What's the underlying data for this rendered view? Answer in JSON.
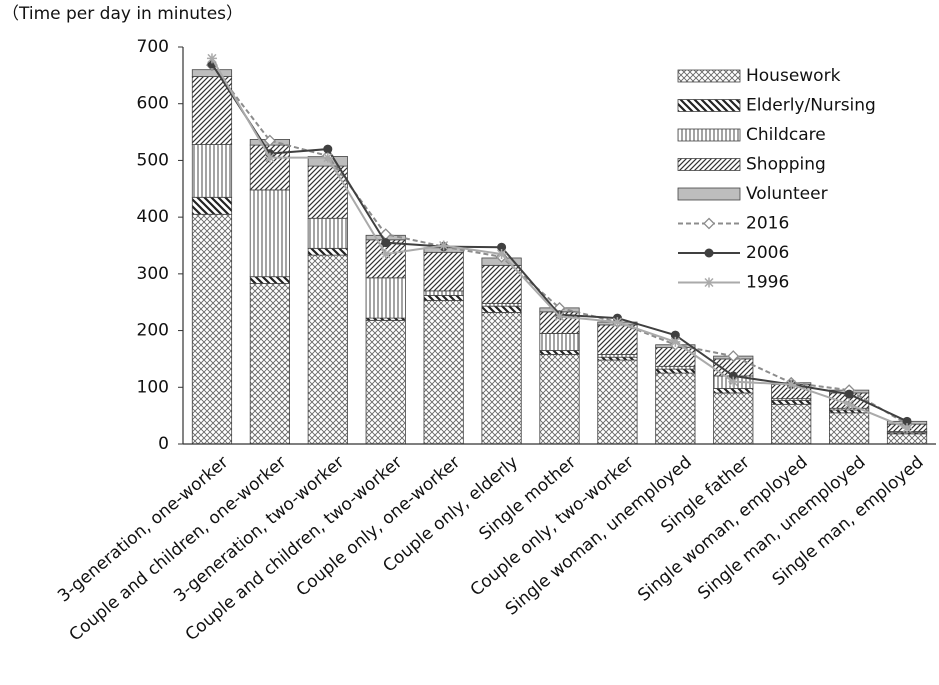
{
  "chart_data": {
    "type": "bar",
    "stacked": true,
    "y_label": "（Time per day in minutes）",
    "categories": [
      "3-generation, one-worker",
      "Couple and children, one-worker",
      "3-generation, two-worker",
      "Couple and children, two-worker",
      "Couple only, one-worker",
      "Couple only, elderly",
      "Single mother",
      "Couple only, two-worker",
      "Single woman, unemployed",
      "Single father",
      "Single woman, employed",
      "Single man, unemployed",
      "Single man, employed"
    ],
    "series": [
      {
        "name": "Housework",
        "type": "bar",
        "pattern": "crosshatch",
        "color": "#555555",
        "values": [
          405,
          283,
          333,
          218,
          253,
          232,
          158,
          148,
          125,
          90,
          70,
          55,
          18
        ]
      },
      {
        "name": "Elderly/Nursing",
        "type": "bar",
        "pattern": "backslash",
        "color": "#222222",
        "values": [
          30,
          12,
          12,
          4,
          9,
          11,
          7,
          5,
          7,
          8,
          7,
          5,
          2
        ]
      },
      {
        "name": "Childcare",
        "type": "bar",
        "pattern": "vertical",
        "color": "#333333",
        "values": [
          93,
          153,
          53,
          71,
          8,
          5,
          30,
          5,
          5,
          22,
          3,
          3,
          2
        ]
      },
      {
        "name": "Shopping",
        "type": "bar",
        "pattern": "slash",
        "color": "#333333",
        "values": [
          120,
          79,
          92,
          67,
          68,
          67,
          38,
          52,
          33,
          30,
          25,
          27,
          13
        ]
      },
      {
        "name": "Volunteer",
        "type": "bar",
        "pattern": "solid",
        "color": "#bdbdbd",
        "values": [
          12,
          10,
          17,
          8,
          8,
          13,
          7,
          5,
          5,
          5,
          3,
          5,
          5
        ]
      },
      {
        "name": "2016",
        "type": "line",
        "style": "dashed",
        "marker": "diamond",
        "color": "#8c8c8c",
        "values": [
          668,
          535,
          508,
          370,
          348,
          330,
          240,
          215,
          175,
          155,
          108,
          95,
          35
        ]
      },
      {
        "name": "2006",
        "type": "line",
        "style": "solid",
        "marker": "circle",
        "color": "#404040",
        "values": [
          670,
          512,
          520,
          355,
          348,
          347,
          228,
          222,
          192,
          120,
          105,
          88,
          40
        ]
      },
      {
        "name": "1996",
        "type": "line",
        "style": "solid",
        "marker": "asterisk",
        "color": "#aaaaaa",
        "values": [
          680,
          505,
          505,
          335,
          350,
          335,
          225,
          215,
          180,
          110,
          105,
          70,
          28
        ]
      }
    ],
    "ylim": [
      0,
      700
    ],
    "yticks": [
      0,
      100,
      200,
      300,
      400,
      500,
      600,
      700
    ],
    "grid": false,
    "legend": "top-right"
  }
}
